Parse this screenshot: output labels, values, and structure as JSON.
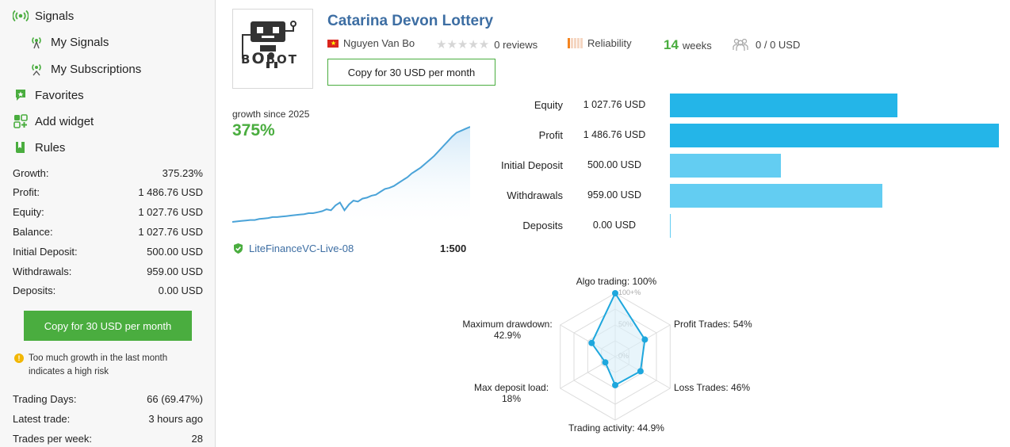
{
  "nav": {
    "signals": "Signals",
    "my_signals": "My Signals",
    "my_subscriptions": "My Subscriptions",
    "favorites": "Favorites",
    "add_widget": "Add widget",
    "rules": "Rules"
  },
  "stats": [
    {
      "label": "Growth:",
      "value": "375.23%"
    },
    {
      "label": "Profit:",
      "value": "1 486.76 USD"
    },
    {
      "label": "Equity:",
      "value": "1 027.76 USD"
    },
    {
      "label": "Balance:",
      "value": "1 027.76 USD"
    },
    {
      "label": "Initial Deposit:",
      "value": "500.00 USD"
    },
    {
      "label": "Withdrawals:",
      "value": "959.00 USD"
    },
    {
      "label": "Deposits:",
      "value": "0.00 USD"
    }
  ],
  "stats2": [
    {
      "label": "Trading Days:",
      "value": "66 (69.47%)"
    },
    {
      "label": "Latest trade:",
      "value": "3 hours ago"
    },
    {
      "label": "Trades per week:",
      "value": "28"
    }
  ],
  "sidebar_copy_button": "Copy for 30 USD per month",
  "warning": "Too much growth in the last month indicates a high risk",
  "signal": {
    "title": "Catarina Devon Lottery",
    "author": "Nguyen Van Bo",
    "reviews": "0 reviews",
    "rating_stars": 0,
    "reliability": "Reliability",
    "weeks_num": "14",
    "weeks_label": "weeks",
    "subscribers": "0 / 0 USD",
    "copy_button": "Copy for 30 USD per month",
    "logo_text": "BOBOT"
  },
  "growth": {
    "label": "growth since 2025",
    "value": "375%",
    "server": "LiteFinanceVC-Live-08",
    "leverage": "1:500",
    "line": [
      2,
      2.5,
      3,
      3.5,
      4,
      4,
      5,
      5.5,
      6,
      7,
      7,
      7.5,
      8,
      8.5,
      9,
      9.5,
      10,
      11,
      11,
      12,
      13,
      15,
      14,
      19,
      22,
      14,
      20,
      24,
      23,
      26,
      27,
      29,
      30,
      33,
      36,
      37,
      39,
      42,
      45,
      48,
      52,
      55,
      58,
      62,
      66,
      70,
      75,
      80,
      85,
      90,
      94,
      96,
      98,
      100
    ]
  },
  "colors": {
    "accent_green": "#4aad3f",
    "link_blue": "#3d6ea3",
    "bar_dark": "#24b5e8",
    "bar_light": "#63cdf2"
  },
  "chart_data": [
    {
      "type": "bar",
      "orientation": "horizontal",
      "categories": [
        "Equity",
        "Profit",
        "Initial Deposit",
        "Withdrawals",
        "Deposits"
      ],
      "values": [
        1027.76,
        1486.76,
        500.0,
        959.0,
        0.0
      ],
      "value_labels": [
        "1 027.76 USD",
        "1 486.76 USD",
        "500.00 USD",
        "959.00 USD",
        "0.00 USD"
      ]
    },
    {
      "type": "radar",
      "axes": [
        {
          "label": "Algo trading: 100%",
          "value": 100
        },
        {
          "label": "Profit Trades: 54%",
          "value": 54
        },
        {
          "label": "Loss Trades: 46%",
          "value": 46
        },
        {
          "label": "Trading activity: 44.9%",
          "value": 44.9
        },
        {
          "label": "Max deposit load:",
          "label2": "18%",
          "value": 18
        },
        {
          "label": "Maximum drawdown:",
          "label2": "42.9%",
          "value": 42.9
        }
      ],
      "grid_labels": [
        "100+%",
        "50%",
        "0%"
      ]
    }
  ]
}
